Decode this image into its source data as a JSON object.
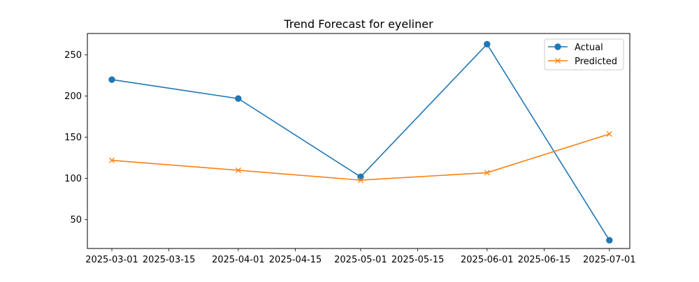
{
  "chart_data": {
    "type": "line",
    "title": "Trend Forecast for eyeliner",
    "xlabel": "",
    "ylabel": "",
    "x": [
      "2025-03-01",
      "2025-04-01",
      "2025-05-01",
      "2025-06-01",
      "2025-07-01"
    ],
    "x_ticks": [
      "2025-03-01",
      "2025-03-15",
      "2025-04-01",
      "2025-04-15",
      "2025-05-01",
      "2025-05-15",
      "2025-06-01",
      "2025-06-15",
      "2025-07-01"
    ],
    "y_ticks": [
      50,
      100,
      150,
      200,
      250
    ],
    "xlim": [
      "2025-02-23",
      "2025-07-06"
    ],
    "ylim": [
      15,
      276
    ],
    "grid": false,
    "legend_position": "top-right",
    "series": [
      {
        "name": "Actual",
        "color": "#1f77b4",
        "marker": "circle",
        "values": [
          220,
          197,
          102,
          263,
          25
        ]
      },
      {
        "name": "Predicted",
        "color": "#ff7f0e",
        "marker": "x",
        "values": [
          122,
          110,
          98,
          107,
          154
        ]
      }
    ]
  }
}
